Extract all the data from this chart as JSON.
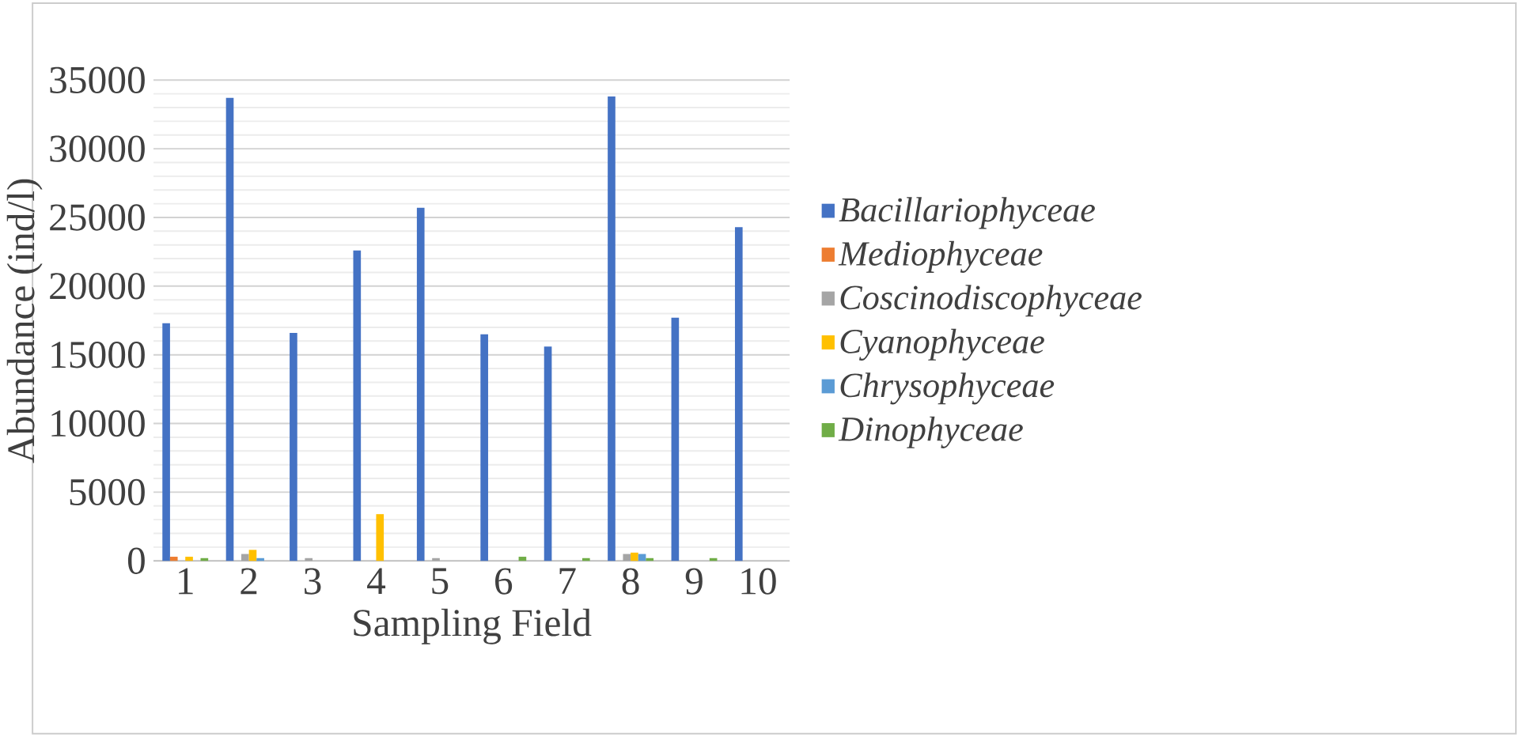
{
  "chart_data": {
    "type": "bar",
    "xlabel": "Sampling Field",
    "ylabel": "Abundance (ind/l)",
    "categories": [
      "1",
      "2",
      "3",
      "4",
      "5",
      "6",
      "7",
      "8",
      "9",
      "10"
    ],
    "series": [
      {
        "name": "Bacillariophyceae",
        "color": "#4472c4",
        "values": [
          17300,
          33700,
          16600,
          22600,
          25700,
          16500,
          15600,
          33800,
          17700,
          24300
        ]
      },
      {
        "name": "Mediophyceae",
        "color": "#ed7d31",
        "values": [
          300,
          0,
          0,
          0,
          0,
          0,
          0,
          0,
          0,
          0
        ]
      },
      {
        "name": "Coscinodiscophyceae",
        "color": "#a5a5a5",
        "values": [
          0,
          500,
          200,
          0,
          200,
          0,
          0,
          500,
          0,
          0
        ]
      },
      {
        "name": "Cyanophyceae",
        "color": "#ffc000",
        "values": [
          300,
          800,
          0,
          3400,
          0,
          0,
          0,
          600,
          0,
          0
        ]
      },
      {
        "name": "Chrysophyceae",
        "color": "#5b9bd5",
        "values": [
          0,
          200,
          0,
          0,
          0,
          0,
          0,
          500,
          0,
          0
        ]
      },
      {
        "name": "Dinophyceae",
        "color": "#70ad47",
        "values": [
          200,
          0,
          0,
          0,
          0,
          300,
          200,
          200,
          200,
          0
        ]
      }
    ],
    "ylim": [
      0,
      35000
    ],
    "yticks": [
      0,
      5000,
      10000,
      15000,
      20000,
      25000,
      30000,
      35000
    ],
    "grid": "y",
    "legend": "right"
  }
}
